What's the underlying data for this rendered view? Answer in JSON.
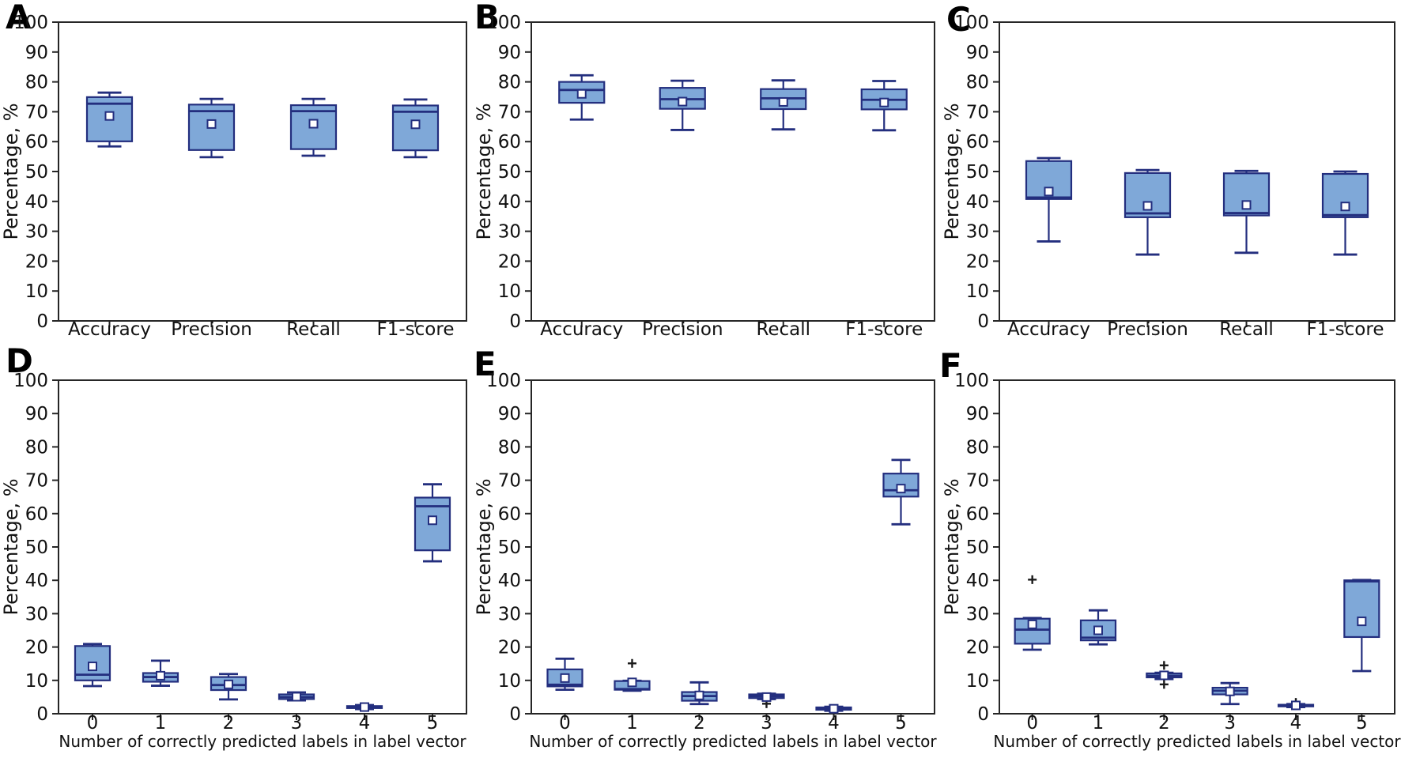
{
  "figure": {
    "ylabel": "Percentage, %",
    "xlabel_bottom_row": "Number of correctly predicted labels in label vector",
    "ylim": [
      0,
      100
    ],
    "ytick_step": 10,
    "colors": {
      "box_fill": "#7fa8d8",
      "box_edge": "#232e7e",
      "whisker": "#232e7e",
      "median": "#232e7e",
      "mean_face": "#ffffff",
      "mean_edge": "#232e7e",
      "flier": "#1a1a1a",
      "axis": "#262626",
      "text": "#111111"
    }
  },
  "chart_data": [
    {
      "panel": "A",
      "type": "box",
      "row": 0,
      "col": 0,
      "title": "",
      "ylabel": "Percentage, %",
      "xlabel": "",
      "ylim": [
        0,
        100
      ],
      "categories": [
        "Accuracy",
        "Precision",
        "Recall",
        "F1-score"
      ],
      "boxes": [
        {
          "whislo": 58.4,
          "q1": 60.1,
          "med": 72.7,
          "q3": 74.9,
          "whishi": 76.4,
          "mean": 68.6,
          "fliers": []
        },
        {
          "whislo": 54.8,
          "q1": 57.2,
          "med": 70.2,
          "q3": 72.4,
          "whishi": 74.3,
          "mean": 65.9,
          "fliers": []
        },
        {
          "whislo": 55.3,
          "q1": 57.5,
          "med": 70.2,
          "q3": 72.2,
          "whishi": 74.3,
          "mean": 66.0,
          "fliers": []
        },
        {
          "whislo": 54.8,
          "q1": 57.1,
          "med": 70.0,
          "q3": 72.1,
          "whishi": 74.1,
          "mean": 65.8,
          "fliers": []
        }
      ]
    },
    {
      "panel": "B",
      "type": "box",
      "row": 0,
      "col": 1,
      "title": "",
      "ylabel": "Percentage, %",
      "xlabel": "",
      "ylim": [
        0,
        100
      ],
      "categories": [
        "Accuracy",
        "Precision",
        "Recall",
        "F1-score"
      ],
      "boxes": [
        {
          "whislo": 67.4,
          "q1": 73.0,
          "med": 77.3,
          "q3": 80.0,
          "whishi": 82.2,
          "mean": 76.0,
          "fliers": []
        },
        {
          "whislo": 63.9,
          "q1": 71.0,
          "med": 74.2,
          "q3": 78.0,
          "whishi": 80.4,
          "mean": 73.4,
          "fliers": []
        },
        {
          "whislo": 64.1,
          "q1": 70.9,
          "med": 74.5,
          "q3": 77.6,
          "whishi": 80.5,
          "mean": 73.3,
          "fliers": []
        },
        {
          "whislo": 63.8,
          "q1": 70.8,
          "med": 74.0,
          "q3": 77.5,
          "whishi": 80.3,
          "mean": 73.1,
          "fliers": []
        }
      ]
    },
    {
      "panel": "C",
      "type": "box",
      "row": 0,
      "col": 2,
      "title": "",
      "ylabel": "Percentage, %",
      "xlabel": "",
      "ylim": [
        0,
        100
      ],
      "categories": [
        "Accuracy",
        "Precision",
        "Recall",
        "F1-score"
      ],
      "boxes": [
        {
          "whislo": 26.6,
          "q1": 40.8,
          "med": 41.3,
          "q3": 53.5,
          "whishi": 54.5,
          "mean": 43.3,
          "fliers": []
        },
        {
          "whislo": 22.2,
          "q1": 34.7,
          "med": 36.0,
          "q3": 49.5,
          "whishi": 50.5,
          "mean": 38.5,
          "fliers": []
        },
        {
          "whislo": 22.8,
          "q1": 35.3,
          "med": 36.1,
          "q3": 49.4,
          "whishi": 50.2,
          "mean": 38.8,
          "fliers": []
        },
        {
          "whislo": 22.2,
          "q1": 34.7,
          "med": 35.4,
          "q3": 49.2,
          "whishi": 50.0,
          "mean": 38.3,
          "fliers": []
        }
      ]
    },
    {
      "panel": "D",
      "type": "box",
      "row": 1,
      "col": 0,
      "title": "",
      "ylabel": "Percentage, %",
      "xlabel": "Number of correctly predicted labels in label vector",
      "ylim": [
        0,
        100
      ],
      "categories": [
        "0",
        "1",
        "2",
        "3",
        "4",
        "5"
      ],
      "boxes": [
        {
          "whislo": 8.3,
          "q1": 10.0,
          "med": 11.7,
          "q3": 20.3,
          "whishi": 20.9,
          "mean": 14.2,
          "fliers": []
        },
        {
          "whislo": 8.4,
          "q1": 9.6,
          "med": 11.0,
          "q3": 12.2,
          "whishi": 15.9,
          "mean": 11.4,
          "fliers": []
        },
        {
          "whislo": 4.3,
          "q1": 7.1,
          "med": 8.6,
          "q3": 11.0,
          "whishi": 11.9,
          "mean": 8.8,
          "fliers": []
        },
        {
          "whislo": 4.0,
          "q1": 4.4,
          "med": 5.0,
          "q3": 5.8,
          "whishi": 6.4,
          "mean": 5.1,
          "fliers": []
        },
        {
          "whislo": 1.4,
          "q1": 1.7,
          "med": 2.0,
          "q3": 2.3,
          "whishi": 2.6,
          "mean": 2.0,
          "fliers": []
        },
        {
          "whislo": 45.7,
          "q1": 49.0,
          "med": 62.2,
          "q3": 64.8,
          "whishi": 68.8,
          "mean": 58.0,
          "fliers": []
        }
      ]
    },
    {
      "panel": "E",
      "type": "box",
      "row": 1,
      "col": 1,
      "title": "",
      "ylabel": "Percentage, %",
      "xlabel": "Number of correctly predicted labels in label vector",
      "ylim": [
        0,
        100
      ],
      "categories": [
        "0",
        "1",
        "2",
        "3",
        "4",
        "5"
      ],
      "boxes": [
        {
          "whislo": 7.2,
          "q1": 8.2,
          "med": 8.7,
          "q3": 13.3,
          "whishi": 16.5,
          "mean": 10.7,
          "fliers": []
        },
        {
          "whislo": 6.9,
          "q1": 7.2,
          "med": 7.4,
          "q3": 9.8,
          "whishi": 9.9,
          "mean": 9.4,
          "fliers": [
            15.1
          ]
        },
        {
          "whislo": 2.9,
          "q1": 3.9,
          "med": 5.3,
          "q3": 6.5,
          "whishi": 9.4,
          "mean": 5.5,
          "fliers": []
        },
        {
          "whislo": 4.4,
          "q1": 4.7,
          "med": 5.3,
          "q3": 5.8,
          "whishi": 6.0,
          "mean": 5.0,
          "fliers": [
            3.0
          ]
        },
        {
          "whislo": 0.9,
          "q1": 1.2,
          "med": 1.5,
          "q3": 1.9,
          "whishi": 2.1,
          "mean": 1.5,
          "fliers": []
        },
        {
          "whislo": 56.8,
          "q1": 65.1,
          "med": 67.0,
          "q3": 72.0,
          "whishi": 76.1,
          "mean": 67.5,
          "fliers": []
        }
      ]
    },
    {
      "panel": "F",
      "type": "box",
      "row": 1,
      "col": 2,
      "title": "",
      "ylabel": "Percentage, %",
      "xlabel": "Number of correctly predicted labels in label vector",
      "ylim": [
        0,
        100
      ],
      "categories": [
        "0",
        "1",
        "2",
        "3",
        "4",
        "5"
      ],
      "boxes": [
        {
          "whislo": 19.2,
          "q1": 21.0,
          "med": 25.2,
          "q3": 28.5,
          "whishi": 28.7,
          "mean": 26.8,
          "fliers": [
            40.2
          ]
        },
        {
          "whislo": 20.8,
          "q1": 22.0,
          "med": 22.8,
          "q3": 28.0,
          "whishi": 31.0,
          "mean": 25.0,
          "fliers": []
        },
        {
          "whislo": 10.4,
          "q1": 10.9,
          "med": 11.4,
          "q3": 12.1,
          "whishi": 12.3,
          "mean": 11.5,
          "fliers": [
            14.5,
            8.8
          ]
        },
        {
          "whislo": 2.9,
          "q1": 5.8,
          "med": 6.9,
          "q3": 7.8,
          "whishi": 9.2,
          "mean": 6.7,
          "fliers": []
        },
        {
          "whislo": 2.0,
          "q1": 2.2,
          "med": 2.45,
          "q3": 2.7,
          "whishi": 2.9,
          "mean": 2.5,
          "fliers": [
            3.4
          ]
        },
        {
          "whislo": 12.8,
          "q1": 23.0,
          "med": 39.7,
          "q3": 40.0,
          "whishi": 40.1,
          "mean": 27.7,
          "fliers": []
        }
      ]
    }
  ]
}
